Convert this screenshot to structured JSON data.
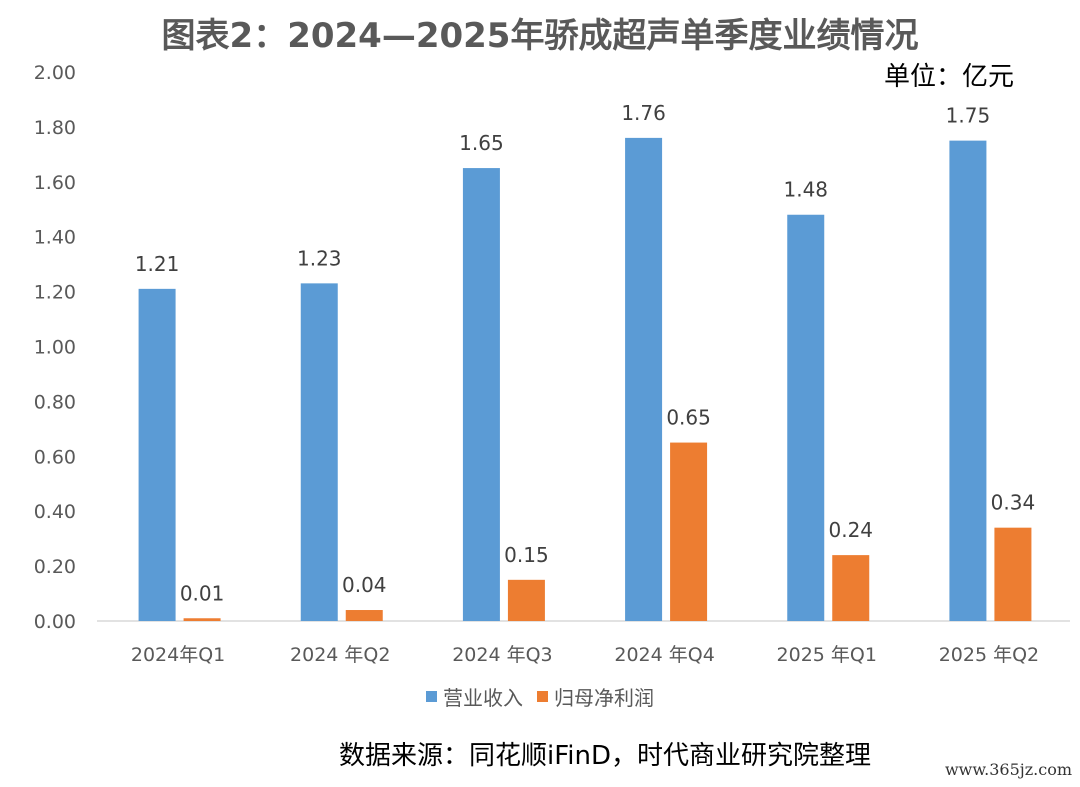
{
  "title": "图表2：2024—2025年骄成超声单季度业绩情况",
  "unit_label": "单位：亿元",
  "source_text": "数据来源：同花顺iFinD，时代商业研究院整理",
  "watermark": "www.365jz.com",
  "chart_data": {
    "type": "bar",
    "categories": [
      "2024年Q1",
      "2024 年Q2",
      "2024 年Q3",
      "2024 年Q4",
      "2025 年Q1",
      "2025 年Q2"
    ],
    "series": [
      {
        "name": "营业收入",
        "color": "#5B9BD5",
        "values": [
          1.21,
          1.23,
          1.65,
          1.76,
          1.48,
          1.75
        ],
        "labels": [
          "1.21",
          "1.23",
          "1.65",
          "1.76",
          "1.48",
          "1.75"
        ]
      },
      {
        "name": "归母净利润",
        "color": "#ED7D31",
        "values": [
          0.01,
          0.04,
          0.15,
          0.65,
          0.24,
          0.34
        ],
        "labels": [
          "0.01",
          "0.04",
          "0.15",
          "0.65",
          "0.24",
          "0.34"
        ]
      }
    ],
    "yticks": [
      "0.00",
      "0.20",
      "0.40",
      "0.60",
      "0.80",
      "1.00",
      "1.20",
      "1.40",
      "1.60",
      "1.80",
      "2.00"
    ],
    "ylim": [
      0,
      2
    ],
    "grid": false,
    "legend_position": "bottom"
  }
}
